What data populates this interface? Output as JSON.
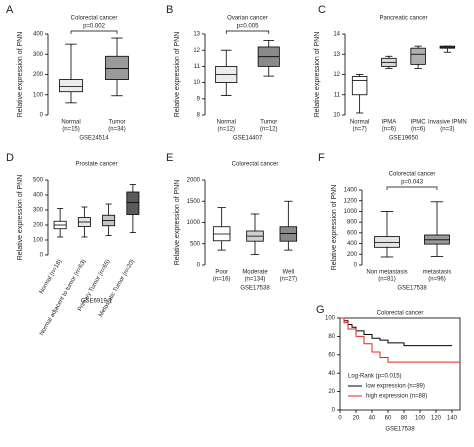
{
  "chart_data": [
    {
      "label": "A",
      "type": "boxplot",
      "title": "Colorectal cancer",
      "y_label": "Relative expression of PNN",
      "x_label": "GSE24514",
      "p_value": "p=0.002",
      "categories": [
        "Normal",
        "Tumor"
      ],
      "n_labels": [
        "(n=15)",
        "(n=34)"
      ],
      "min": [
        60,
        95
      ],
      "q1": [
        115,
        175
      ],
      "median": [
        140,
        230
      ],
      "q3": [
        175,
        290
      ],
      "max": [
        350,
        380
      ],
      "colors": [
        "#ececec",
        "#9a9a9a"
      ],
      "ylim": [
        0,
        400
      ],
      "yticks": [
        0,
        100,
        200,
        300,
        400
      ]
    },
    {
      "label": "B",
      "type": "boxplot",
      "title": "Ovarian cancer",
      "y_label": "Relative expression of PNN",
      "x_label": "GSE14407",
      "p_value": "p=0.005",
      "categories": [
        "Normal",
        "Tumor"
      ],
      "n_labels": [
        "(n=12)",
        "(n=12)"
      ],
      "min": [
        9.2,
        10.4
      ],
      "q1": [
        10.0,
        11.0
      ],
      "median": [
        10.5,
        11.6
      ],
      "q3": [
        11.0,
        12.2
      ],
      "max": [
        12.0,
        12.6
      ],
      "colors": [
        "#ececec",
        "#8a8a8a"
      ],
      "ylim": [
        8,
        13
      ],
      "yticks": [
        8,
        9,
        10,
        11,
        12,
        13
      ]
    },
    {
      "label": "C",
      "type": "boxplot",
      "title": "Pancreatic cancer",
      "y_label": "Relative expression of PNN",
      "x_label": "GSE19650",
      "categories": [
        "Normal",
        "IPMA",
        "IPMC",
        "Invasive IPMN"
      ],
      "n_labels": [
        "(n=7)",
        "(n=6)",
        "(n=6)",
        "(n=3)"
      ],
      "min": [
        10.1,
        12.3,
        12.3,
        13.1
      ],
      "q1": [
        11.0,
        12.4,
        12.5,
        13.3
      ],
      "median": [
        11.7,
        12.6,
        13.0,
        13.35
      ],
      "q3": [
        11.9,
        12.8,
        13.3,
        13.4
      ],
      "max": [
        12.0,
        12.9,
        13.4,
        13.4
      ],
      "colors": [
        "#ffffff",
        "#d8d8d8",
        "#b0b0b0",
        "#909090"
      ],
      "ylim": [
        10,
        14
      ],
      "yticks": [
        10,
        11,
        12,
        13,
        14
      ]
    },
    {
      "label": "D",
      "type": "boxplot",
      "title": "Prostate cancer",
      "y_label": "Relative expression of PNN",
      "x_label": "GSE6919-1",
      "rotate_labels": true,
      "categories": [
        "Normal (n=18)",
        "Normal adjacent to tumor (n=63)",
        "Primary Tumor (n=65)",
        "Metastatic Tumor (n=20)"
      ],
      "min": [
        120,
        120,
        130,
        150
      ],
      "q1": [
        175,
        190,
        195,
        270
      ],
      "median": [
        200,
        220,
        230,
        350
      ],
      "q3": [
        225,
        250,
        265,
        420
      ],
      "max": [
        310,
        320,
        340,
        470
      ],
      "colors": [
        "#ffffff",
        "#e4e4e4",
        "#c4c4c4",
        "#5a5a5a"
      ],
      "ylim": [
        0,
        500
      ],
      "yticks": [
        0,
        100,
        200,
        300,
        400,
        500
      ]
    },
    {
      "label": "E",
      "type": "boxplot",
      "title": "Colorectal cancer",
      "y_label": "Relative expression of PNN",
      "x_label": "GSE17538",
      "categories": [
        "Poor",
        "Moderate",
        "Well"
      ],
      "n_labels": [
        "(n=16)",
        "(n=134)",
        "(n=27)"
      ],
      "min": [
        350,
        250,
        350
      ],
      "q1": [
        570,
        560,
        560
      ],
      "median": [
        730,
        680,
        740
      ],
      "q3": [
        900,
        800,
        900
      ],
      "max": [
        1350,
        1200,
        1500
      ],
      "colors": [
        "#ffffff",
        "#d0d0d0",
        "#8a8a8a"
      ],
      "ylim": [
        0,
        2000
      ],
      "yticks": [
        0,
        500,
        1000,
        1500,
        2000
      ]
    },
    {
      "label": "F",
      "type": "boxplot",
      "title": "Colorectal cancer",
      "y_label": "Relative expression of PNN",
      "x_label": "GSE17538",
      "p_value": "p=0.043",
      "categories": [
        "Non metastasis",
        "metastasis"
      ],
      "n_labels": [
        "(n=81)",
        "(n=96)"
      ],
      "min": [
        150,
        160
      ],
      "q1": [
        330,
        390
      ],
      "median": [
        420,
        470
      ],
      "q3": [
        530,
        560
      ],
      "max": [
        1000,
        1180
      ],
      "colors": [
        "#e4e4e4",
        "#9a9a9a"
      ],
      "ylim": [
        0,
        1400
      ],
      "yticks": [
        0,
        200,
        400,
        600,
        800,
        1000,
        1200,
        1400
      ]
    },
    {
      "label": "G",
      "type": "line",
      "title": "Colorectal cancer",
      "x_label": "GSE17538",
      "legend_title": "Log-Rank  (p=0.015)",
      "xlim": [
        0,
        150
      ],
      "xticks": [
        0,
        20,
        40,
        60,
        80,
        100,
        120,
        140
      ],
      "ylim": [
        0,
        100
      ],
      "yticks": [
        0,
        20,
        40,
        60,
        80,
        100
      ],
      "series": [
        {
          "name": "low expression (n=89)",
          "color": "#000000",
          "x": [
            0,
            5,
            5,
            10,
            10,
            15,
            15,
            20,
            20,
            30,
            30,
            40,
            40,
            50,
            50,
            60,
            60,
            80,
            80,
            140
          ],
          "values": [
            100,
            100,
            97,
            97,
            93,
            93,
            90,
            90,
            86,
            86,
            82,
            82,
            78,
            78,
            76,
            76,
            73,
            73,
            70,
            70
          ]
        },
        {
          "name": "high expression (n=88)",
          "color": "#e8231e",
          "x": [
            0,
            5,
            5,
            10,
            10,
            20,
            20,
            30,
            30,
            40,
            40,
            50,
            50,
            60,
            60,
            150
          ],
          "values": [
            100,
            100,
            95,
            95,
            88,
            88,
            80,
            80,
            72,
            72,
            63,
            63,
            57,
            57,
            52,
            52
          ]
        }
      ]
    }
  ]
}
